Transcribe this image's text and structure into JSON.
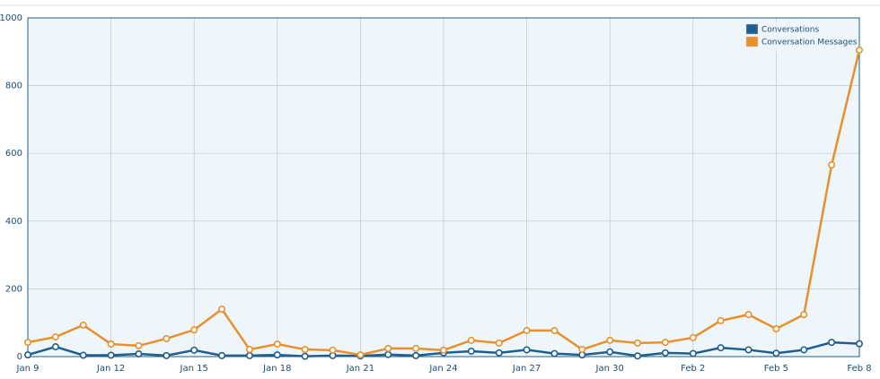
{
  "chart_data": {
    "type": "line",
    "categories": [
      "Jan 9",
      null,
      null,
      "Jan 12",
      null,
      null,
      "Jan 15",
      null,
      null,
      "Jan 18",
      null,
      null,
      "Jan 21",
      null,
      null,
      "Jan 24",
      null,
      null,
      "Jan 27",
      null,
      null,
      "Jan 30",
      null,
      null,
      "Feb 2",
      null,
      null,
      "Feb 5",
      null,
      null,
      "Feb 8"
    ],
    "series": [
      {
        "name": "Conversations",
        "color": "#1f5f8f",
        "values": [
          5,
          29,
          4,
          4,
          8,
          3,
          19,
          3,
          3,
          5,
          1,
          3,
          2,
          6,
          3,
          11,
          16,
          11,
          20,
          9,
          5,
          14,
          2,
          11,
          9,
          26,
          20,
          10,
          20,
          42,
          38
        ]
      },
      {
        "name": "Conversation Messages",
        "color": "#e8912c",
        "values": [
          42,
          58,
          93,
          37,
          32,
          53,
          79,
          140,
          21,
          37,
          21,
          19,
          5,
          24,
          24,
          19,
          48,
          40,
          77,
          77,
          21,
          48,
          40,
          42,
          56,
          106,
          124,
          82,
          124,
          566,
          905
        ]
      }
    ],
    "ylim": [
      0,
      1000
    ],
    "yticks": [
      0,
      200,
      400,
      600,
      800,
      1000
    ],
    "grid": true,
    "legend": "upper right"
  }
}
